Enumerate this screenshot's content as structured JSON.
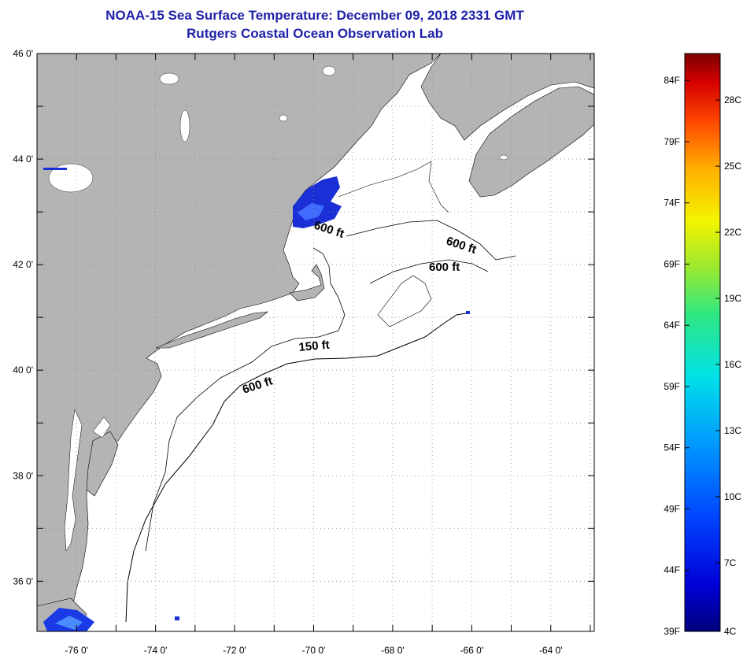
{
  "title": {
    "line1": "NOAA-15 Sea Surface Temperature:  December 09, 2018 2331 GMT",
    "line2": "Rutgers Coastal Ocean Observation Lab"
  },
  "map": {
    "lat_labels": [
      {
        "value": 46,
        "text": "46 0'"
      },
      {
        "value": 44,
        "text": "44 0'"
      },
      {
        "value": 42,
        "text": "42 0'"
      },
      {
        "value": 40,
        "text": "40 0'"
      },
      {
        "value": 38,
        "text": "38 0'"
      },
      {
        "value": 36,
        "text": "36 0'"
      }
    ],
    "lon_labels": [
      {
        "value": -76,
        "text": "-76 0'"
      },
      {
        "value": -74,
        "text": "-74 0'"
      },
      {
        "value": -72,
        "text": "-72 0'"
      },
      {
        "value": -70,
        "text": "-70 0'"
      },
      {
        "value": -68,
        "text": "-68 0'"
      },
      {
        "value": -66,
        "text": "-66 0'"
      },
      {
        "value": -64,
        "text": "-64 0'"
      }
    ],
    "contour_labels": [
      {
        "text": "600 ft"
      },
      {
        "text": "600 ft"
      },
      {
        "text": "600 ft"
      },
      {
        "text": "150 ft"
      },
      {
        "text": "600 ft"
      }
    ],
    "colors": {
      "land": "#b4b4b4",
      "ocean": "#ffffff",
      "sst_cold": "#1a2fd6",
      "grid": "#8a8a8a"
    }
  },
  "colorbar": {
    "f_labels": [
      "84F",
      "79F",
      "74F",
      "69F",
      "64F",
      "59F",
      "54F",
      "49F",
      "44F",
      "39F"
    ],
    "c_labels": [
      "28C",
      "25C",
      "22C",
      "19C",
      "16C",
      "13C",
      "10C",
      "7C",
      "4C"
    ],
    "min_label_f": "39F",
    "min_label_c": "4C"
  }
}
